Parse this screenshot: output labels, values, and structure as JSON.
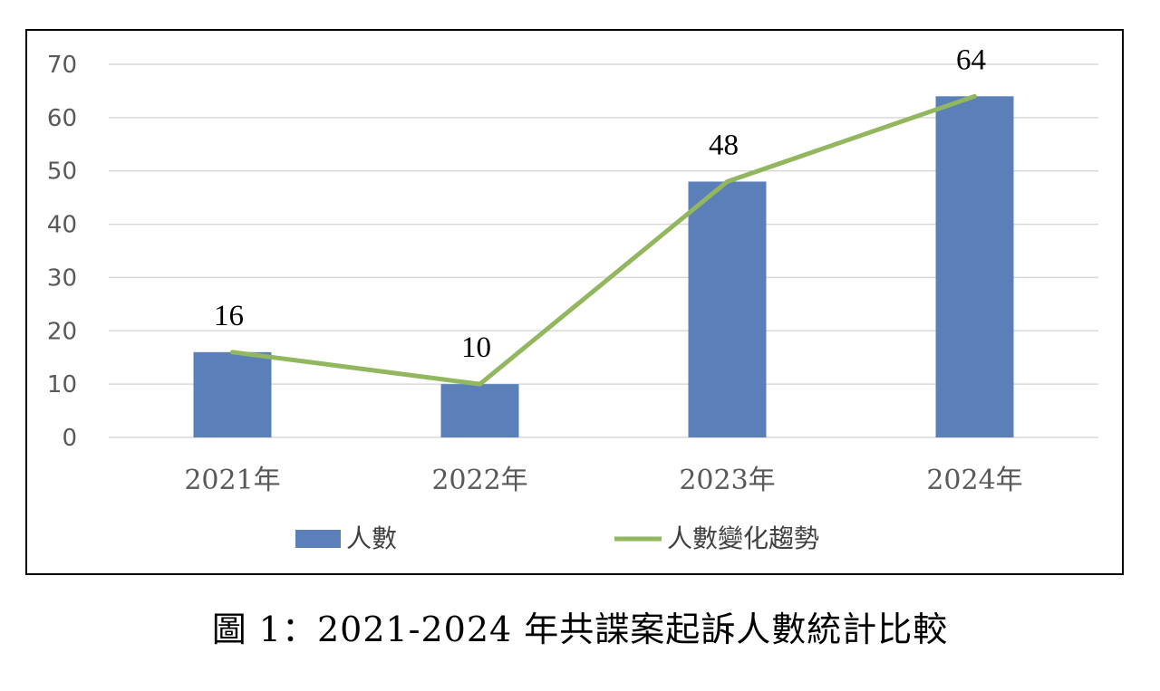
{
  "caption": "圖 1：2021-2024 年共諜案起訴人數統計比較",
  "colors": {
    "bar": "#5B80B9",
    "line": "#92B75E",
    "grid": "#D9D9D9"
  },
  "chart_data": {
    "type": "bar",
    "categories": [
      "2021年",
      "2022年",
      "2023年",
      "2024年"
    ],
    "series": [
      {
        "name": "人數",
        "type": "bar",
        "values": [
          16,
          10,
          48,
          64
        ]
      },
      {
        "name": "人數變化趨勢",
        "type": "line",
        "values": [
          16,
          10,
          48,
          64
        ]
      }
    ],
    "data_labels": [
      "16",
      "10",
      "48",
      "64"
    ],
    "yticks": [
      "0",
      "10",
      "20",
      "30",
      "40",
      "50",
      "60",
      "70"
    ],
    "ylim": [
      0,
      70
    ],
    "grid": true,
    "legend_position": "bottom"
  }
}
